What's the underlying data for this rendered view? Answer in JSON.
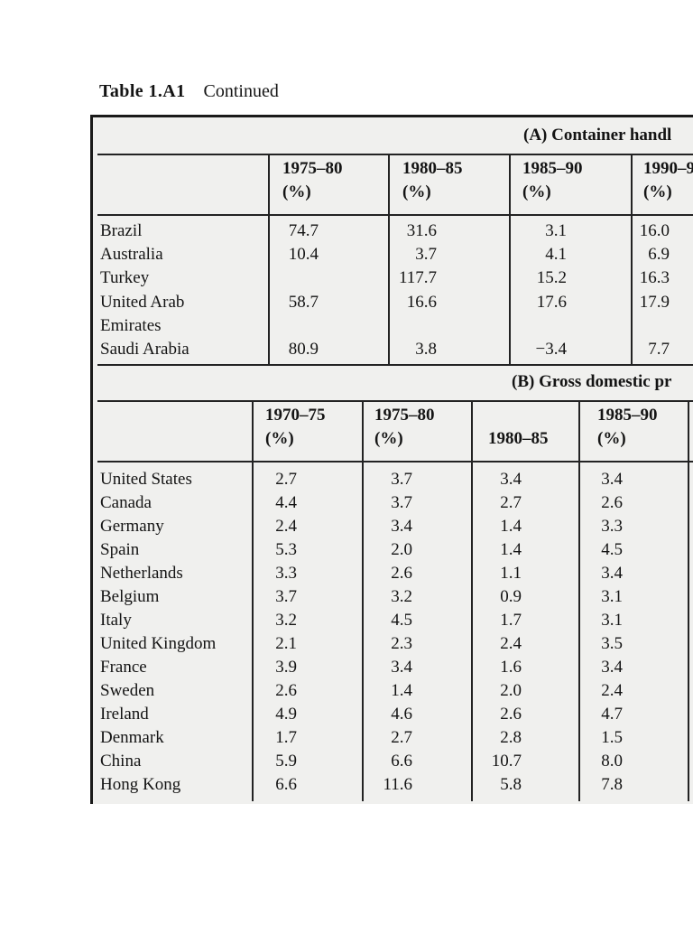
{
  "title": {
    "label": "Table 1.A1",
    "continued": "Continued"
  },
  "table": {
    "section_a": {
      "band_label": "(A) Container handl",
      "col_headers": [
        {
          "line1": "1975–80",
          "line2": "(%)"
        },
        {
          "line1": "1980–85",
          "line2": "(%)"
        },
        {
          "line1": "1985–90",
          "line2": "(%)"
        },
        {
          "line1": "1990–9",
          "line2": "(%)"
        }
      ],
      "rows": [
        {
          "name": "Brazil",
          "values": [
            "74.7",
            "31.6",
            "3.1",
            "16.0"
          ]
        },
        {
          "name": "Australia",
          "values": [
            "10.4",
            "3.7",
            "4.1",
            "6.9"
          ]
        },
        {
          "name": "Turkey",
          "values": [
            "",
            "117.7",
            "15.2",
            "16.3"
          ]
        },
        {
          "name": "United Arab",
          "values": [
            "58.7",
            "16.6",
            "17.6",
            "17.9"
          ]
        },
        {
          "name": "Emirates",
          "values": [
            "",
            "",
            "",
            ""
          ]
        },
        {
          "name": "Saudi Arabia",
          "values": [
            "80.9",
            "3.8",
            "−3.4",
            "7.7"
          ]
        }
      ]
    },
    "section_b": {
      "band_label": "(B) Gross domestic pr",
      "col_headers": [
        {
          "line1": "1970–75",
          "line2": "(%)"
        },
        {
          "line1": "1975–80",
          "line2": "(%)"
        },
        {
          "line1": "",
          "line2": "1980–85"
        },
        {
          "line1": "1985–90",
          "line2": "(%)"
        }
      ],
      "rows": [
        {
          "name": "United States",
          "values": [
            "2.7",
            "3.7",
            "3.4",
            "3.4"
          ]
        },
        {
          "name": "Canada",
          "values": [
            "4.4",
            "3.7",
            "2.7",
            "2.6"
          ]
        },
        {
          "name": "Germany",
          "values": [
            "2.4",
            "3.4",
            "1.4",
            "3.3"
          ]
        },
        {
          "name": "Spain",
          "values": [
            "5.3",
            "2.0",
            "1.4",
            "4.5"
          ]
        },
        {
          "name": "Netherlands",
          "values": [
            "3.3",
            "2.6",
            "1.1",
            "3.4"
          ]
        },
        {
          "name": "Belgium",
          "values": [
            "3.7",
            "3.2",
            "0.9",
            "3.1"
          ]
        },
        {
          "name": "Italy",
          "values": [
            "3.2",
            "4.5",
            "1.7",
            "3.1"
          ]
        },
        {
          "name": "United Kingdom",
          "values": [
            "2.1",
            "2.3",
            "2.4",
            "3.5"
          ]
        },
        {
          "name": "France",
          "values": [
            "3.9",
            "3.4",
            "1.6",
            "3.4"
          ]
        },
        {
          "name": "Sweden",
          "values": [
            "2.6",
            "1.4",
            "2.0",
            "2.4"
          ]
        },
        {
          "name": "Ireland",
          "values": [
            "4.9",
            "4.6",
            "2.6",
            "4.7"
          ]
        },
        {
          "name": "Denmark",
          "values": [
            "1.7",
            "2.7",
            "2.8",
            "1.5"
          ]
        },
        {
          "name": "China",
          "values": [
            "5.9",
            "6.6",
            "10.7",
            "8.0"
          ]
        },
        {
          "name": "Hong Kong",
          "values": [
            "6.6",
            "11.6",
            "5.8",
            "7.8"
          ]
        }
      ]
    },
    "colors": {
      "page_bg": "#ffffff",
      "table_bg": "#f0f0ee",
      "text": "#141414",
      "rule": "#232323"
    }
  }
}
